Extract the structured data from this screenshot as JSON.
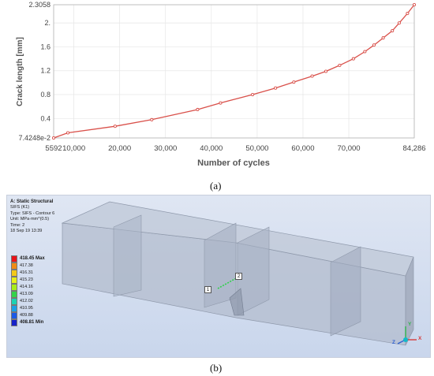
{
  "captions": {
    "a": "(a)",
    "b": "(b)"
  },
  "chart_data": {
    "type": "line",
    "xlabel": "Number of cycles",
    "ylabel": "Crack length [mm]",
    "xlim": [
      5592,
      84286
    ],
    "ylim": [
      0.074248,
      2.3058
    ],
    "x_tick_labels": [
      {
        "v": 5592,
        "label": "5592"
      },
      {
        "v": 10000,
        "label": "10,000"
      },
      {
        "v": 20000,
        "label": "20,000"
      },
      {
        "v": 30000,
        "label": "30,000"
      },
      {
        "v": 40000,
        "label": "40,000"
      },
      {
        "v": 50000,
        "label": "50,000"
      },
      {
        "v": 60000,
        "label": "60,000"
      },
      {
        "v": 70000,
        "label": "70,000"
      },
      {
        "v": 84286,
        "label": "84,286"
      }
    ],
    "y_tick_labels": [
      {
        "v": 0.074248,
        "label": "7.4248e-2"
      },
      {
        "v": 0.4,
        "label": "0.4"
      },
      {
        "v": 0.8,
        "label": "0.8"
      },
      {
        "v": 1.2,
        "label": "1.2"
      },
      {
        "v": 1.6,
        "label": "1.6"
      },
      {
        "v": 2.0,
        "label": "2."
      },
      {
        "v": 2.3058,
        "label": "2.3058"
      }
    ],
    "series": [
      {
        "color": "#d9504a",
        "x": [
          5592,
          8700,
          19000,
          27000,
          37000,
          42000,
          49000,
          54000,
          58000,
          62000,
          65000,
          68000,
          71000,
          73500,
          75500,
          77500,
          79500,
          81000,
          82800,
          84286
        ],
        "y": [
          0.074248,
          0.16,
          0.27,
          0.38,
          0.55,
          0.66,
          0.8,
          0.91,
          1.01,
          1.11,
          1.19,
          1.29,
          1.4,
          1.52,
          1.63,
          1.75,
          1.87,
          2.0,
          2.16,
          2.3058
        ]
      }
    ],
    "grid": true
  },
  "ansys": {
    "title": "A: Static Structural",
    "lines": [
      "SIFS (K1)",
      "Type: SIFS - Contour 6",
      "Unit: MPa·mm^(0.5)",
      "Time: 2",
      "18 Sep 19 13:39"
    ],
    "legend": [
      {
        "label": "418.45 Max",
        "color": "#e8121a",
        "bold": true
      },
      {
        "label": "417.38",
        "color": "#f08a14",
        "bold": false
      },
      {
        "label": "416.31",
        "color": "#f2c81a",
        "bold": false
      },
      {
        "label": "415.23",
        "color": "#e6ef1a",
        "bold": false
      },
      {
        "label": "414.16",
        "color": "#a8ec1a",
        "bold": false
      },
      {
        "label": "413.09",
        "color": "#34d24a",
        "bold": false
      },
      {
        "label": "412.02",
        "color": "#1ad2b4",
        "bold": false
      },
      {
        "label": "410.95",
        "color": "#1aa0e6",
        "bold": false
      },
      {
        "label": "409.88",
        "color": "#1a5ae6",
        "bold": false
      },
      {
        "label": "408.81 Min",
        "color": "#1622c8",
        "bold": true
      }
    ],
    "probe_1": "1",
    "probe_2": "2",
    "triad": {
      "x": "X",
      "y": "Y",
      "z": "Z"
    }
  }
}
